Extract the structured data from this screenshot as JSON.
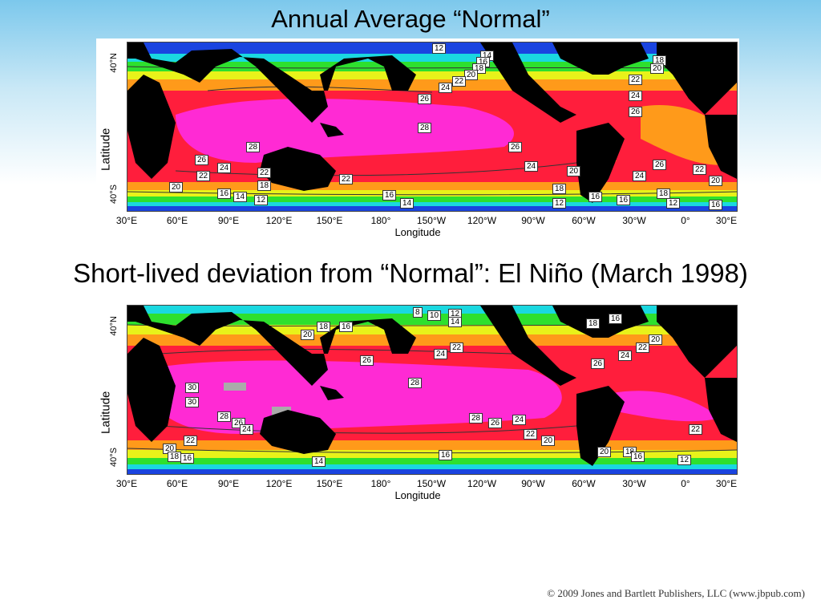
{
  "slide": {
    "title_top": "Annual Average “Normal”",
    "title_bottom": "Short-lived deviation from “Normal”:  El Niño (March 1998)",
    "copyright": "© 2009 Jones and Bartlett Publishers, LLC (www.jbpub.com)"
  },
  "maps": [
    {
      "axis": {
        "ylabel": "Latitude",
        "xlabel": "Longitude",
        "lat_ticks": [
          "40°N",
          "40°S"
        ],
        "lon_ticks": [
          "30°E",
          "60°E",
          "90°E",
          "120°E",
          "150°E",
          "180°",
          "150°W",
          "120°W",
          "90°W",
          "60°W",
          "30°W",
          "0°",
          "30°E"
        ]
      },
      "contour_labels": [
        "12",
        "14",
        "16",
        "18",
        "20",
        "22",
        "24",
        "26",
        "28",
        "26",
        "24",
        "20",
        "18",
        "12",
        "18",
        "20",
        "22",
        "24",
        "26",
        "26",
        "24",
        "22",
        "20",
        "18",
        "16",
        "12",
        "16",
        "28",
        "26",
        "24",
        "22",
        "20",
        "16",
        "14",
        "12",
        "18",
        "22",
        "16",
        "14",
        "22",
        "16"
      ]
    },
    {
      "axis": {
        "ylabel": "Latitude",
        "xlabel": "Longitude",
        "lat_ticks": [
          "40°N",
          "40°S"
        ],
        "lon_ticks": [
          "30°E",
          "60°E",
          "90°E",
          "120°E",
          "150°E",
          "180°",
          "150°W",
          "120°W",
          "90°W",
          "60°W",
          "30°W",
          "0°",
          "30°E"
        ]
      },
      "contour_labels": [
        "8",
        "10",
        "12",
        "14",
        "18",
        "16",
        "20",
        "22",
        "24",
        "26",
        "28",
        "30",
        "30",
        "28",
        "26",
        "24",
        "22",
        "20",
        "18",
        "16",
        "14",
        "16",
        "28",
        "26",
        "24",
        "22",
        "20",
        "26",
        "24",
        "22",
        "20",
        "18",
        "16",
        "12",
        "18",
        "16",
        "20",
        "22"
      ]
    }
  ],
  "colors": {
    "land": "#000000",
    "warmest": "#ff2ad4",
    "warm": "#ff1e3c",
    "mild": "#ff9a1a",
    "cool": "#e8f21a",
    "cooler": "#2ee02e",
    "cold": "#1ad8e0",
    "coldest": "#1a44e0"
  }
}
